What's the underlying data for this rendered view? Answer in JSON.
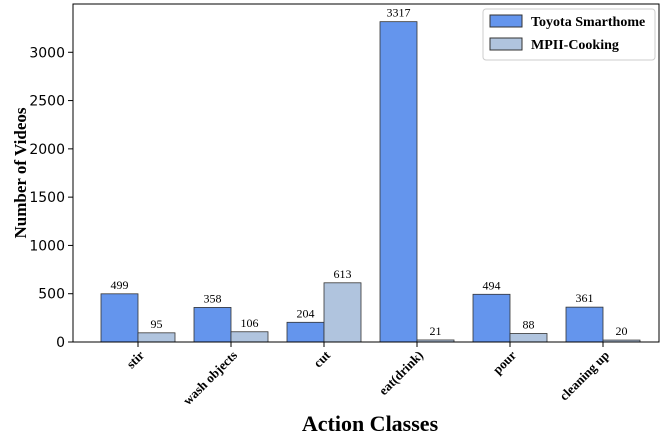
{
  "chart_data": {
    "type": "bar",
    "xlabel": "Action Classes",
    "ylabel": "Number of Videos",
    "categories": [
      "stir",
      "wash objects",
      "cut",
      "eat(drink)",
      "pour",
      "cleaning up"
    ],
    "series": [
      {
        "name": "Toyota Smarthome",
        "color": "#6495ED",
        "values": [
          499,
          358,
          204,
          3317,
          494,
          361
        ]
      },
      {
        "name": "MPII-Cooking",
        "color": "#B0C4DE",
        "values": [
          95,
          106,
          613,
          21,
          88,
          20
        ]
      }
    ],
    "ylim": [
      0,
      3500
    ],
    "yticks": [
      "0",
      "500",
      "1000",
      "1500",
      "2000",
      "2500",
      "3000"
    ],
    "grid": false,
    "legend_position": "top-right"
  }
}
